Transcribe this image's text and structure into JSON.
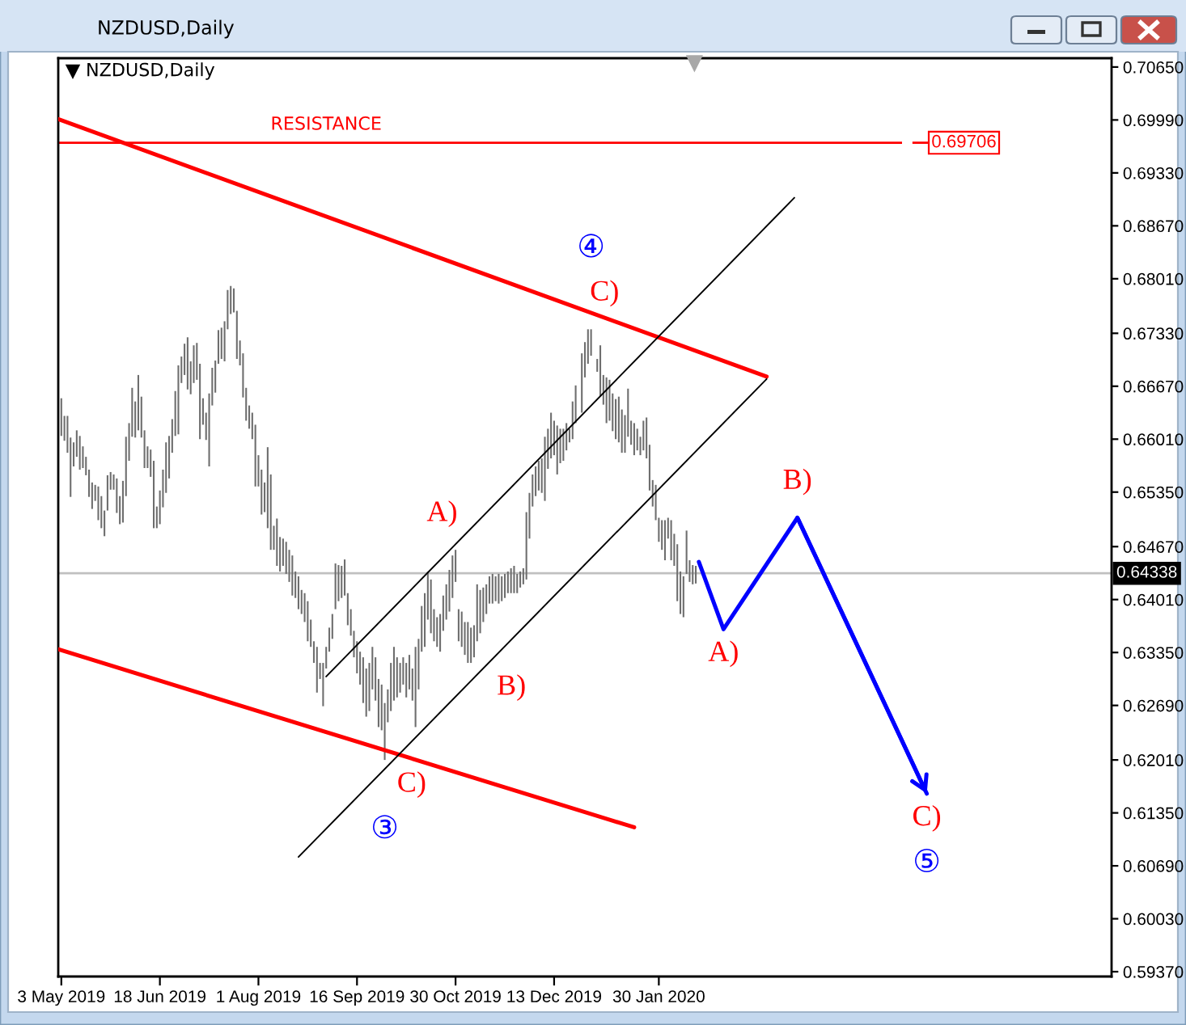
{
  "chart_data": {
    "type": "bar",
    "title": "NZDUSD,Daily",
    "annotations": [
      "NZDUSD,Daily",
      {
        "text": "RESISTANCE",
        "x": "2019-09-02",
        "y": 0.69706
      },
      {
        "text": "C)",
        "x": "2019-12-31",
        "y": 0.6738
      },
      {
        "text": "④",
        "x": "2019-12-31",
        "y": 0.6738
      },
      {
        "text": "A)",
        "x": "2019-10-30",
        "y": 0.6463
      },
      {
        "text": "B)",
        "x": "2019-11-06",
        "y": 0.6322
      },
      {
        "text": "C)",
        "x": "2019-09-27",
        "y": 0.6201
      },
      {
        "text": "③",
        "x": "2019-09-27",
        "y": 0.6201
      },
      {
        "text": "B)",
        "x": "2020-04-02",
        "y": 0.6503
      },
      {
        "text": "A)",
        "x": "2020-02-28",
        "y": 0.6364
      },
      {
        "text": "C)",
        "x": "2020-06-01",
        "y": 0.6159
      },
      {
        "text": "⑤",
        "x": "2020-06-01",
        "y": 0.6159
      }
    ],
    "series": [
      {
        "color": "#6e6e6e",
        "x": [
          "2019-05-03",
          "2019-05-06",
          "2019-05-07",
          "2019-05-08",
          "2019-05-09",
          "2019-05-10",
          "2019-05-13",
          "2019-05-14",
          "2019-05-15",
          "2019-05-16",
          "2019-05-17",
          "2019-05-20",
          "2019-05-21",
          "2019-05-22",
          "2019-05-23",
          "2019-05-24",
          "2019-05-27",
          "2019-05-28",
          "2019-05-29",
          "2019-05-30",
          "2019-05-31",
          "2019-06-03",
          "2019-06-04",
          "2019-06-05",
          "2019-06-06",
          "2019-06-07",
          "2019-06-10",
          "2019-06-11",
          "2019-06-12",
          "2019-06-13",
          "2019-06-14",
          "2019-06-17",
          "2019-06-18",
          "2019-06-19",
          "2019-06-20",
          "2019-06-21",
          "2019-06-24",
          "2019-06-25",
          "2019-06-26",
          "2019-06-27",
          "2019-06-28",
          "2019-07-01",
          "2019-07-02",
          "2019-07-03",
          "2019-07-04",
          "2019-07-05",
          "2019-07-08",
          "2019-07-09",
          "2019-07-10",
          "2019-07-11",
          "2019-07-12",
          "2019-07-15",
          "2019-07-16",
          "2019-07-17",
          "2019-07-18",
          "2019-07-19",
          "2019-07-22",
          "2019-07-23",
          "2019-07-24",
          "2019-07-25",
          "2019-07-26",
          "2019-07-29",
          "2019-07-30",
          "2019-07-31",
          "2019-08-01",
          "2019-08-02",
          "2019-08-05",
          "2019-08-06",
          "2019-08-07",
          "2019-08-08",
          "2019-08-09",
          "2019-08-12",
          "2019-08-13",
          "2019-08-14",
          "2019-08-15",
          "2019-08-16",
          "2019-08-19",
          "2019-08-20",
          "2019-08-21",
          "2019-08-22",
          "2019-08-23",
          "2019-08-26",
          "2019-08-27",
          "2019-08-28",
          "2019-08-29",
          "2019-08-30",
          "2019-09-02",
          "2019-09-03",
          "2019-09-04",
          "2019-09-05",
          "2019-09-06",
          "2019-09-09",
          "2019-09-10",
          "2019-09-11",
          "2019-09-12",
          "2019-09-13",
          "2019-09-16",
          "2019-09-17",
          "2019-09-18",
          "2019-09-19",
          "2019-09-20",
          "2019-09-23",
          "2019-09-24",
          "2019-09-25",
          "2019-09-26",
          "2019-09-27",
          "2019-09-30",
          "2019-10-01",
          "2019-10-02",
          "2019-10-03",
          "2019-10-04",
          "2019-10-07",
          "2019-10-08",
          "2019-10-09",
          "2019-10-10",
          "2019-10-11",
          "2019-10-14",
          "2019-10-15",
          "2019-10-16",
          "2019-10-17",
          "2019-10-18",
          "2019-10-21",
          "2019-10-22",
          "2019-10-23",
          "2019-10-24",
          "2019-10-25",
          "2019-10-28",
          "2019-10-29",
          "2019-10-30",
          "2019-10-31",
          "2019-11-01",
          "2019-11-04",
          "2019-11-05",
          "2019-11-06",
          "2019-11-07",
          "2019-11-08",
          "2019-11-11",
          "2019-11-12",
          "2019-11-13",
          "2019-11-14",
          "2019-11-15",
          "2019-11-18",
          "2019-11-19",
          "2019-11-20",
          "2019-11-21",
          "2019-11-22",
          "2019-11-25",
          "2019-11-26",
          "2019-11-27",
          "2019-11-28",
          "2019-11-29",
          "2019-12-02",
          "2019-12-03",
          "2019-12-04",
          "2019-12-05",
          "2019-12-06",
          "2019-12-09",
          "2019-12-10",
          "2019-12-11",
          "2019-12-12",
          "2019-12-13",
          "2019-12-16",
          "2019-12-17",
          "2019-12-18",
          "2019-12-19",
          "2019-12-20",
          "2019-12-23",
          "2019-12-24",
          "2019-12-26",
          "2019-12-27",
          "2019-12-30",
          "2019-12-31",
          "2020-01-02",
          "2020-01-03",
          "2020-01-06",
          "2020-01-07",
          "2020-01-08",
          "2020-01-09",
          "2020-01-10",
          "2020-01-13",
          "2020-01-14",
          "2020-01-15",
          "2020-01-16",
          "2020-01-17",
          "2020-01-20",
          "2020-01-21",
          "2020-01-22",
          "2020-01-23",
          "2020-01-24",
          "2020-01-27",
          "2020-01-28",
          "2020-01-29",
          "2020-01-30",
          "2020-01-31",
          "2020-02-03",
          "2020-02-04",
          "2020-02-05",
          "2020-02-06",
          "2020-02-07",
          "2020-02-10",
          "2020-02-11",
          "2020-02-12",
          "2020-02-13",
          "2020-02-14",
          "2020-02-17"
        ],
        "base": [
          0.6605,
          0.6599,
          0.6584,
          0.6529,
          0.6567,
          0.6579,
          0.6563,
          0.6565,
          0.6556,
          0.6529,
          0.6514,
          0.6524,
          0.65,
          0.649,
          0.648,
          0.6512,
          0.6538,
          0.6538,
          0.6509,
          0.6495,
          0.6497,
          0.653,
          0.6574,
          0.6604,
          0.6603,
          0.6612,
          0.6603,
          0.6565,
          0.6565,
          0.6554,
          0.649,
          0.649,
          0.6495,
          0.6516,
          0.6534,
          0.6552,
          0.6584,
          0.6605,
          0.6607,
          0.6671,
          0.6681,
          0.6663,
          0.6657,
          0.6671,
          0.6675,
          0.6601,
          0.6619,
          0.66,
          0.6567,
          0.6643,
          0.6659,
          0.6695,
          0.6701,
          0.6698,
          0.6738,
          0.6757,
          0.6759,
          0.6701,
          0.6693,
          0.6653,
          0.6624,
          0.6614,
          0.6601,
          0.6542,
          0.6542,
          0.6507,
          0.651,
          0.649,
          0.6463,
          0.6463,
          0.6443,
          0.6436,
          0.6443,
          0.6433,
          0.6423,
          0.6406,
          0.6403,
          0.6389,
          0.6383,
          0.6373,
          0.6349,
          0.6342,
          0.6322,
          0.6285,
          0.6302,
          0.6268,
          0.6315,
          0.6336,
          0.6352,
          0.6389,
          0.6399,
          0.6403,
          0.6406,
          0.6369,
          0.6356,
          0.6329,
          0.6309,
          0.6295,
          0.6272,
          0.6255,
          0.6262,
          0.6289,
          0.6275,
          0.6242,
          0.6238,
          0.6201,
          0.6248,
          0.6262,
          0.6275,
          0.6279,
          0.6285,
          0.6295,
          0.6279,
          0.6289,
          0.6275,
          0.6242,
          0.6289,
          0.6336,
          0.6342,
          0.6376,
          0.6359,
          0.6349,
          0.6342,
          0.6336,
          0.6362,
          0.6376,
          0.6386,
          0.6403,
          0.6423,
          0.6349,
          0.6342,
          0.6332,
          0.6322,
          0.6322,
          0.6329,
          0.6349,
          0.6359,
          0.6373,
          0.6383,
          0.6396,
          0.6396,
          0.6399,
          0.6396,
          0.6399,
          0.6403,
          0.6409,
          0.6409,
          0.6409,
          0.6409,
          0.6416,
          0.642,
          0.6426,
          0.6477,
          0.6517,
          0.653,
          0.6537,
          0.6534,
          0.6524,
          0.6564,
          0.6577,
          0.6581,
          0.6557,
          0.6571,
          0.6574,
          0.6587,
          0.6597,
          0.6601,
          0.6621,
          0.6634,
          0.6678,
          0.6695,
          0.6705,
          0.6685,
          0.6654,
          0.6644,
          0.6621,
          0.6624,
          0.6611,
          0.6601,
          0.6597,
          0.6584,
          0.6584,
          0.6604,
          0.6594,
          0.6581,
          0.6587,
          0.6581,
          0.6587,
          0.6577,
          0.6537,
          0.6517,
          0.65,
          0.6473,
          0.6463,
          0.645,
          0.6477,
          0.645,
          0.6443,
          0.6399,
          0.6383,
          0.6379,
          0.6433,
          0.6423,
          0.642,
          0.6421
        ],
        "values": [
          0.0047,
          0.0031,
          0.0046,
          0.0074,
          0.003,
          0.0033,
          0.0042,
          0.0027,
          0.0023,
          0.0034,
          0.0033,
          0.002,
          0.0042,
          0.004,
          0.0032,
          0.0044,
          0.0022,
          0.0019,
          0.0043,
          0.0035,
          0.0052,
          0.0074,
          0.0047,
          0.0061,
          0.0045,
          0.0069,
          0.0051,
          0.0047,
          0.0027,
          0.0034,
          0.0084,
          0.0027,
          0.0042,
          0.0047,
          0.0063,
          0.0053,
          0.0042,
          0.0056,
          0.0086,
          0.0033,
          0.0039,
          0.0065,
          0.0041,
          0.0047,
          0.0046,
          0.0094,
          0.0033,
          0.0034,
          0.0091,
          0.0047,
          0.004,
          0.0042,
          0.0039,
          0.005,
          0.0049,
          0.0035,
          0.003,
          0.006,
          0.0031,
          0.0055,
          0.0041,
          0.0029,
          0.0033,
          0.0077,
          0.0039,
          0.0056,
          0.0037,
          0.0101,
          0.0094,
          0.003,
          0.0059,
          0.0043,
          0.0034,
          0.004,
          0.004,
          0.005,
          0.0033,
          0.0041,
          0.003,
          0.0036,
          0.005,
          0.0034,
          0.0027,
          0.0057,
          0.002,
          0.0054,
          0.0027,
          0.003,
          0.0031,
          0.0057,
          0.0045,
          0.004,
          0.0045,
          0.004,
          0.0033,
          0.0033,
          0.004,
          0.0041,
          0.0057,
          0.006,
          0.006,
          0.0053,
          0.0054,
          0.006,
          0.0057,
          0.0071,
          0.0041,
          0.006,
          0.0067,
          0.005,
          0.0037,
          0.0034,
          0.0043,
          0.0043,
          0.004,
          0.01,
          0.0063,
          0.0057,
          0.0067,
          0.006,
          0.0067,
          0.004,
          0.0037,
          0.0047,
          0.0044,
          0.0044,
          0.0052,
          0.0053,
          0.004,
          0.004,
          0.0044,
          0.0041,
          0.0051,
          0.0044,
          0.004,
          0.0071,
          0.0054,
          0.0043,
          0.0037,
          0.0034,
          0.0037,
          0.0031,
          0.0037,
          0.0031,
          0.003,
          0.0027,
          0.0031,
          0.0034,
          0.0024,
          0.002,
          0.002,
          0.0084,
          0.0057,
          0.004,
          0.0037,
          0.0037,
          0.0043,
          0.008,
          0.005,
          0.0057,
          0.0043,
          0.0061,
          0.0043,
          0.004,
          0.0034,
          0.0017,
          0.0047,
          0.0047,
          0.0074,
          0.0044,
          0.0043,
          0.0033,
          0.0016,
          0.0064,
          0.0037,
          0.0057,
          0.0051,
          0.0047,
          0.005,
          0.0057,
          0.0054,
          0.0047,
          0.006,
          0.003,
          0.004,
          0.0027,
          0.0023,
          0.0037,
          0.0051,
          0.0057,
          0.0033,
          0.0044,
          0.003,
          0.0037,
          0.005,
          0.0026,
          0.005,
          0.004,
          0.0071,
          0.0053,
          0.0051,
          0.0054,
          0.0027,
          0.0024,
          0.0022
        ]
      },
      {
        "type": "line",
        "color": "#ff0000",
        "x": [
          "2019-05-02",
          "2020-03-19"
        ],
        "values": [
          0.7,
          0.6679
        ]
      },
      {
        "type": "line",
        "color": "#ff0000",
        "x": [
          "2019-05-02",
          "2020-01-20"
        ],
        "values": [
          0.6339,
          0.6117
        ]
      },
      {
        "type": "line",
        "color": "#000000",
        "x": [
          "2019-09-02",
          "2020-04-01"
        ],
        "values": [
          0.6305,
          0.6902
        ]
      },
      {
        "type": "line",
        "color": "#000000",
        "x": [
          "2019-08-20",
          "2020-03-19"
        ],
        "values": [
          0.608,
          0.6676
        ]
      },
      {
        "type": "line",
        "color": "#0000ff",
        "x": [
          "2020-02-18",
          "2020-02-28",
          "2020-04-02",
          "2020-06-01"
        ],
        "values": [
          0.6448,
          0.6364,
          0.6503,
          0.6159
        ]
      }
    ],
    "xlim": [
      "2019-05-02",
      "2020-08-24"
    ],
    "xticks": [
      {
        "value": "2019-05-03",
        "label": "3 May 2019"
      },
      {
        "value": "2019-06-18",
        "label": "18 Jun 2019"
      },
      {
        "value": "2019-08-01",
        "label": "1 Aug 2019"
      },
      {
        "value": "2019-09-16",
        "label": "16 Sep 2019"
      },
      {
        "value": "2019-10-30",
        "label": "30 Oct 2019"
      },
      {
        "value": "2019-12-13",
        "label": "13 Dec 2019"
      },
      {
        "value": "2020-01-30",
        "label": "30 Jan 2020"
      }
    ],
    "ylim": [
      0.5931,
      0.7076
    ],
    "yticks": [
      {
        "value": 0.7065,
        "label": "0.70650"
      },
      {
        "value": 0.6999,
        "label": "0.69990"
      },
      {
        "value": 0.6933,
        "label": "0.69330"
      },
      {
        "value": 0.6867,
        "label": "0.68670"
      },
      {
        "value": 0.6801,
        "label": "0.68010"
      },
      {
        "value": 0.6733,
        "label": "0.67330"
      },
      {
        "value": 0.6667,
        "label": "0.66670"
      },
      {
        "value": 0.6601,
        "label": "0.66010"
      },
      {
        "value": 0.6535,
        "label": "0.65350"
      },
      {
        "value": 0.6467,
        "label": "0.64670"
      },
      {
        "value": 0.6401,
        "label": "0.64010"
      },
      {
        "value": 0.6335,
        "label": "0.63350"
      },
      {
        "value": 0.6269,
        "label": "0.62690"
      },
      {
        "value": 0.6201,
        "label": "0.62010"
      },
      {
        "value": 0.6135,
        "label": "0.61350"
      },
      {
        "value": 0.6069,
        "label": "0.60690"
      },
      {
        "value": 0.6003,
        "label": "0.60030"
      },
      {
        "value": 0.5937,
        "label": "0.59370"
      }
    ],
    "ref_lines": [
      {
        "axis": "y",
        "value": 0.69706,
        "label": "0.69706",
        "color": "#ff0000"
      },
      {
        "axis": "y",
        "value": 0.64338,
        "label": "0.64338",
        "color": "#c0c0c0"
      }
    ]
  }
}
